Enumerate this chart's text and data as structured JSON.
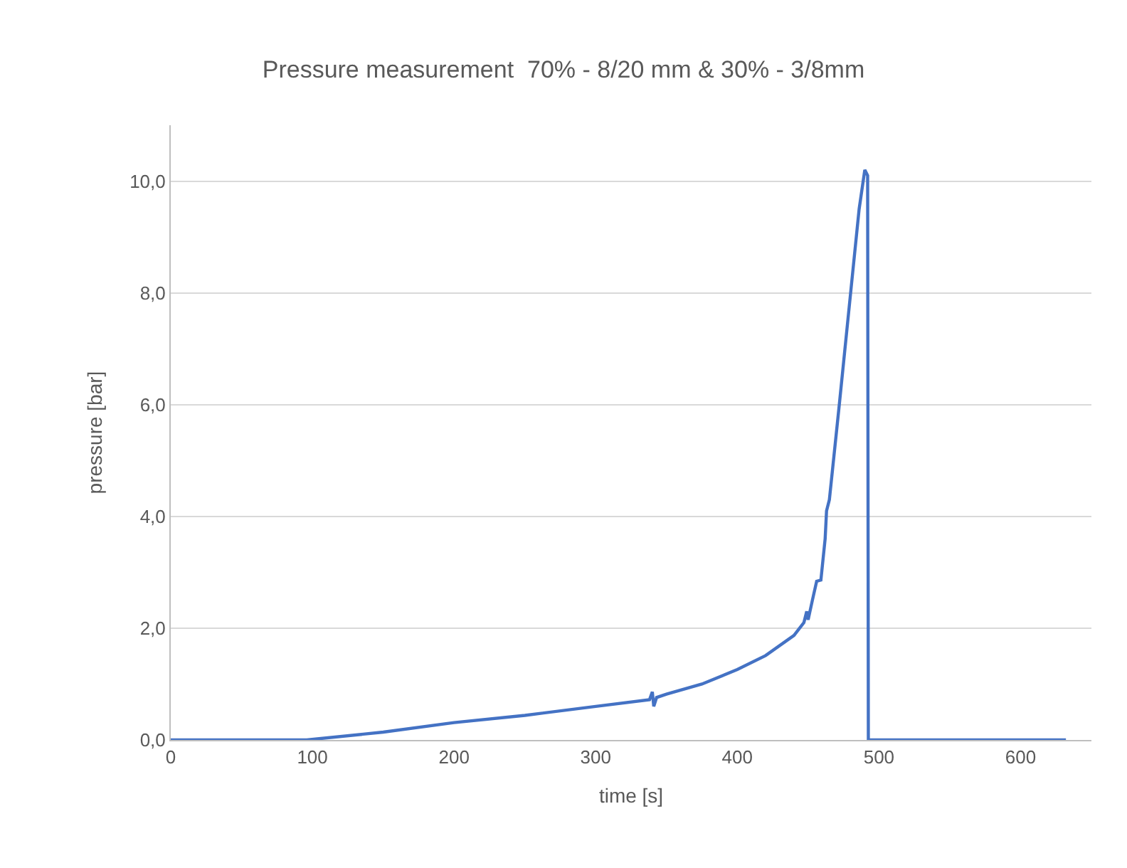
{
  "chart_data": {
    "type": "line",
    "title": "Pressure measurement  70% - 8/20 mm & 30% - 3/8mm",
    "xlabel": "time [s]",
    "ylabel": "pressure [bar]",
    "x": [
      0,
      96,
      150,
      200,
      250,
      300,
      338,
      340,
      341,
      343,
      350,
      375,
      400,
      420,
      440,
      447,
      449,
      450,
      453,
      456,
      459,
      462,
      463,
      465,
      472,
      480,
      486,
      490,
      492,
      492.5,
      632
    ],
    "series": [
      {
        "color": "#4472c4",
        "values": [
          0,
          0,
          0.14,
          0.31,
          0.44,
          0.6,
          0.72,
          0.86,
          0.6,
          0.76,
          0.82,
          1.0,
          1.26,
          1.51,
          1.87,
          2.1,
          2.3,
          2.15,
          2.5,
          2.84,
          2.86,
          3.6,
          4.1,
          4.3,
          6.0,
          8.0,
          9.5,
          10.2,
          10.1,
          0,
          0
        ]
      }
    ],
    "xlim": [
      0,
      650
    ],
    "xticks": [
      0,
      100,
      200,
      300,
      400,
      500,
      600
    ],
    "ylim": [
      0,
      11
    ],
    "yticks": [
      {
        "value": 0,
        "label": "0,0"
      },
      {
        "value": 2,
        "label": "2,0"
      },
      {
        "value": 4,
        "label": "4,0"
      },
      {
        "value": 6,
        "label": "6,0"
      },
      {
        "value": 8,
        "label": "8,0"
      },
      {
        "value": 10,
        "label": "10,0"
      }
    ],
    "grid": "y",
    "marker": "none",
    "line_style": "solid"
  }
}
